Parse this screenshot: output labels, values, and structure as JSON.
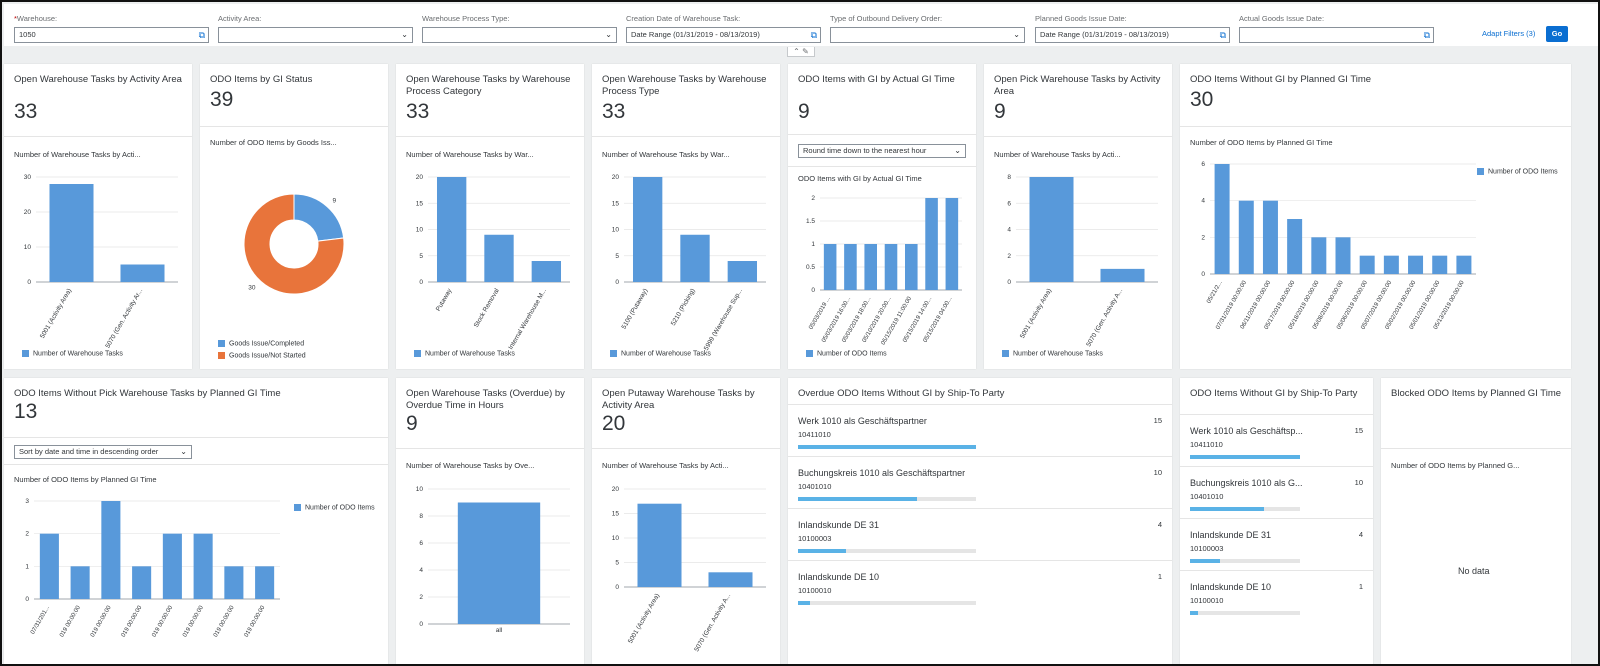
{
  "filters": {
    "warehouse": {
      "label": "Warehouse:",
      "value": "1050"
    },
    "activity_area": {
      "label": "Activity Area:",
      "value": ""
    },
    "process_type": {
      "label": "Warehouse Process Type:",
      "value": ""
    },
    "creation_date": {
      "label": "Creation Date of Warehouse Task:",
      "value": "Date Range (01/31/2019 - 08/13/2019)"
    },
    "delivery_type": {
      "label": "Type of Outbound Delivery Order:",
      "value": ""
    },
    "planned_gi": {
      "label": "Planned Goods Issue Date:",
      "value": "Date Range (01/31/2019 - 08/13/2019)"
    },
    "actual_gi": {
      "label": "Actual Goods Issue Date:",
      "value": ""
    },
    "adapt_filters": "Adapt Filters (3)",
    "go": "Go"
  },
  "colors": {
    "bar": "#5899da",
    "orange": "#e8743b",
    "progress": "#5ab2e6",
    "accent": "#0a6ed1"
  },
  "cards": {
    "c1": {
      "title": "Open Warehouse Tasks by Activity Area",
      "kpi": "33",
      "chart_title": "Number of Warehouse Tasks by Acti...",
      "legend": "Number of Warehouse Tasks"
    },
    "c2": {
      "title": "ODO Items by GI Status",
      "kpi": "39",
      "chart_title": "Number of ODO Items by Goods Iss...",
      "legend1": "Goods Issue/Completed",
      "legend2": "Goods Issue/Not Started"
    },
    "c3": {
      "title": "Open Warehouse Tasks by Warehouse Process Category",
      "kpi": "33",
      "chart_title": "Number of Warehouse Tasks by War...",
      "legend": "Number of Warehouse Tasks"
    },
    "c4": {
      "title": "Open Warehouse Tasks by Warehouse Process Type",
      "kpi": "33",
      "chart_title": "Number of Warehouse Tasks by War...",
      "legend": "Number of Warehouse Tasks"
    },
    "c5": {
      "title": "ODO Items with GI by Actual GI Time",
      "kpi": "9",
      "select": "Round time down to the nearest hour",
      "chart_title": "ODO Items with GI by Actual GI Time",
      "legend": "Number of ODO Items"
    },
    "c6": {
      "title": "Open Pick Warehouse Tasks by Activity Area",
      "kpi": "9",
      "chart_title": "Number of Warehouse Tasks by Acti...",
      "legend": "Number of Warehouse Tasks"
    },
    "c7": {
      "title": "ODO Items Without GI by Planned GI Time",
      "kpi": "30",
      "chart_title": "Number of ODO Items by Planned GI Time",
      "legend": "Number of ODO Items"
    },
    "c8": {
      "title": "ODO Items Without Pick Warehouse Tasks by Planned GI Time",
      "kpi": "13",
      "select": "Sort by date and time in descending order",
      "chart_title": "Number of ODO Items by Planned GI Time",
      "legend": "Number of ODO Items"
    },
    "c9": {
      "title": "Open Warehouse Tasks (Overdue) by Overdue Time in Hours",
      "kpi": "9",
      "chart_title": "Number of Warehouse Tasks by Ove..."
    },
    "c10": {
      "title": "Open Putaway Warehouse Tasks by Activity Area",
      "kpi": "20",
      "chart_title": "Number of Warehouse Tasks by Acti..."
    },
    "c11": {
      "title": "Overdue ODO Items Without GI by Ship-To Party"
    },
    "c12": {
      "title": "ODO Items Without GI by Ship-To Party"
    },
    "c13": {
      "title": "Blocked ODO Items by Planned GI Time",
      "chart_title": "Number of ODO Items by Planned G...",
      "nodata": "No data"
    }
  },
  "ship_to_full": [
    {
      "name": "Werk 1010 als Geschäftspartner",
      "id": "10411010",
      "value": "15",
      "fraction": 1.0
    },
    {
      "name": "Buchungskreis 1010 als Geschäftspartner",
      "id": "10401010",
      "value": "10",
      "fraction": 0.67
    },
    {
      "name": "Inlandskunde DE 31",
      "id": "10100003",
      "value": "4",
      "fraction": 0.27
    },
    {
      "name": "Inlandskunde DE 10",
      "id": "10100010",
      "value": "1",
      "fraction": 0.07
    }
  ],
  "ship_to_short": [
    {
      "name": "Werk 1010 als Geschäftsp...",
      "id": "10411010",
      "value": "15",
      "fraction": 1.0
    },
    {
      "name": "Buchungskreis 1010 als G...",
      "id": "10401010",
      "value": "10",
      "fraction": 0.67
    },
    {
      "name": "Inlandskunde DE 31",
      "id": "10100003",
      "value": "4",
      "fraction": 0.27
    },
    {
      "name": "Inlandskunde DE 10",
      "id": "10100010",
      "value": "1",
      "fraction": 0.07
    }
  ],
  "chart_data": [
    {
      "id": "c1",
      "type": "bar",
      "categories": [
        "5001 (Activity Area)",
        "5070 (Gen. Activity Ar..."
      ],
      "values": [
        28,
        5
      ],
      "ylim": [
        0,
        30
      ],
      "ticks": [
        0,
        10,
        20,
        30
      ]
    },
    {
      "id": "c2",
      "type": "pie",
      "donut": true,
      "labels": [
        "Goods Issue/Completed",
        "Goods Issue/Not Started"
      ],
      "values": [
        9,
        30
      ],
      "colors": [
        "#5899da",
        "#e8743b"
      ]
    },
    {
      "id": "c3",
      "type": "bar",
      "categories": [
        "Putaway",
        "Stock Removal",
        "Internal Warehouse M..."
      ],
      "values": [
        20,
        9,
        4
      ],
      "ylim": [
        0,
        20
      ],
      "ticks": [
        0,
        5,
        10,
        15,
        20
      ]
    },
    {
      "id": "c4",
      "type": "bar",
      "categories": [
        "5100 (Putaway)",
        "5210 (Picking)",
        "5999 (Warehouse Sup..."
      ],
      "values": [
        20,
        9,
        4
      ],
      "ylim": [
        0,
        20
      ],
      "ticks": [
        0,
        5,
        10,
        15,
        20
      ]
    },
    {
      "id": "c5",
      "type": "bar",
      "categories": [
        "05/03/2019 ...",
        "05/03/2019 16:00...",
        "05/03/2019 18:00...",
        "05/10/2019 20:00...",
        "05/15/2019 11:00:00",
        "05/15/2019 14:00...",
        "05/15/2019 04:00..."
      ],
      "values": [
        1,
        1,
        1,
        1,
        1,
        2,
        2
      ],
      "ylim": [
        0,
        2
      ],
      "ticks": [
        0,
        0.5,
        1,
        1.5,
        2
      ]
    },
    {
      "id": "c6",
      "type": "bar",
      "categories": [
        "5001 (Activity Area)",
        "5070 (Gen. Activity A..."
      ],
      "values": [
        8,
        1
      ],
      "ylim": [
        0,
        8
      ],
      "ticks": [
        0,
        2,
        4,
        6,
        8
      ]
    },
    {
      "id": "c7",
      "type": "bar",
      "categories": [
        "05/21/2...",
        "07/31/2019 00:00:00",
        "06/11/2019 00:00:00",
        "05/17/2019 00:00:00",
        "05/18/2019 00:00:00",
        "05/08/2019 00:00:00",
        "05/06/2019 00:00:00",
        "05/07/2019 00:00:00",
        "05/02/2019 00:00:00",
        "05/01/2019 00:00:00",
        "05/13/2019 00:00:00"
      ],
      "values": [
        6,
        4,
        4,
        3,
        2,
        2,
        1,
        1,
        1,
        1,
        1
      ],
      "ylim": [
        0,
        6
      ],
      "ticks": [
        0,
        2,
        4,
        6
      ]
    },
    {
      "id": "c8",
      "type": "bar",
      "categories": [
        "07/31/201...",
        "019 00:00:00",
        "019 00:00:00",
        "019 00:00:00",
        "019 00:00:00",
        "019 00:00:00",
        "019 00:00:00",
        "019 00:00:00"
      ],
      "values": [
        2,
        1,
        3,
        1,
        2,
        2,
        1,
        1
      ],
      "ylim": [
        0,
        3
      ],
      "ticks": [
        0,
        1,
        2,
        3
      ]
    },
    {
      "id": "c9",
      "type": "bar",
      "categories": [
        "all"
      ],
      "values": [
        9
      ],
      "ylim": [
        0,
        10
      ],
      "ticks": [
        0,
        2,
        4,
        6,
        8,
        10
      ]
    },
    {
      "id": "c10",
      "type": "bar",
      "categories": [
        "5001 (Activity Area)",
        "5070 (Gen. Activity A..."
      ],
      "values": [
        17,
        3
      ],
      "ylim": [
        0,
        20
      ],
      "ticks": [
        0,
        5,
        10,
        15,
        20
      ]
    }
  ]
}
